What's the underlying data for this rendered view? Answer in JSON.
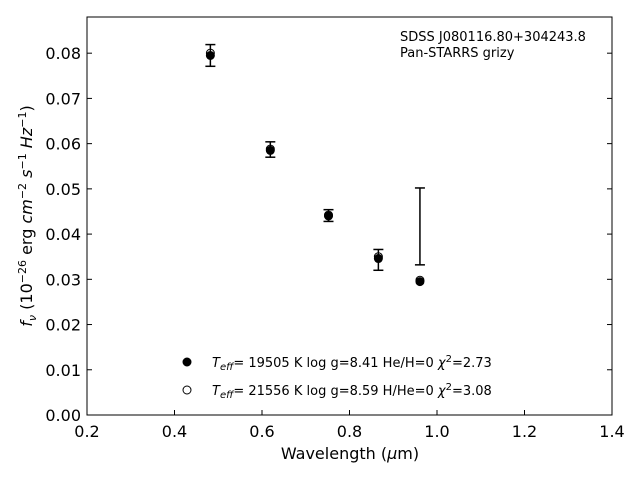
{
  "chart_data": {
    "type": "scatter",
    "annotation_lines": [
      "SDSS J080116.80+304243.8",
      "Pan-STARRS grizy"
    ],
    "xlabel": "Wavelength (μm)",
    "ylabel": "f_ν (10^-26 erg cm^-2 s^-1 Hz^-1)",
    "xlim": [
      0.2,
      1.4
    ],
    "ylim": [
      0.0,
      0.088
    ],
    "xticks": [
      0.2,
      0.4,
      0.6,
      0.8,
      1.0,
      1.2,
      1.4
    ],
    "xtick_labels": [
      "0.2",
      "0.4",
      "0.6",
      "0.8",
      "1.0",
      "1.2",
      "1.4"
    ],
    "yticks": [
      0.0,
      0.01,
      0.02,
      0.03,
      0.04,
      0.05,
      0.06,
      0.07,
      0.08
    ],
    "ytick_labels": [
      "0.00",
      "0.01",
      "0.02",
      "0.03",
      "0.04",
      "0.05",
      "0.06",
      "0.07",
      "0.08"
    ],
    "grid": false,
    "legend_position": "lower-center",
    "observed": {
      "x": [
        0.482,
        0.619,
        0.752,
        0.866,
        0.961
      ],
      "y": [
        0.0795,
        0.0587,
        0.0441,
        0.0343,
        0.0417
      ],
      "yerr": [
        0.0024,
        0.0017,
        0.0013,
        0.0023,
        0.0085
      ]
    },
    "series": [
      {
        "name": "Teff= 19505 K  log g=8.41  He/H=0  χ2=2.73",
        "marker": "filled-circle",
        "x": [
          0.482,
          0.619,
          0.752,
          0.866,
          0.961
        ],
        "y": [
          0.0795,
          0.0585,
          0.044,
          0.0346,
          0.0295
        ]
      },
      {
        "name": "Teff= 21556 K  log g=8.59  H/He=0  χ2=3.08",
        "marker": "open-circle",
        "x": [
          0.482,
          0.619,
          0.752,
          0.866,
          0.961
        ],
        "y": [
          0.08,
          0.0588,
          0.0442,
          0.035,
          0.0298
        ]
      }
    ],
    "legend": [
      {
        "teff": "19505",
        "logg": "8.41",
        "comp_num": "He",
        "comp_den": "H",
        "comp_val": "0",
        "chi2": "2.73"
      },
      {
        "teff": "21556",
        "logg": "8.59",
        "comp_num": "H",
        "comp_den": "He",
        "comp_val": "0",
        "chi2": "3.08"
      }
    ]
  }
}
